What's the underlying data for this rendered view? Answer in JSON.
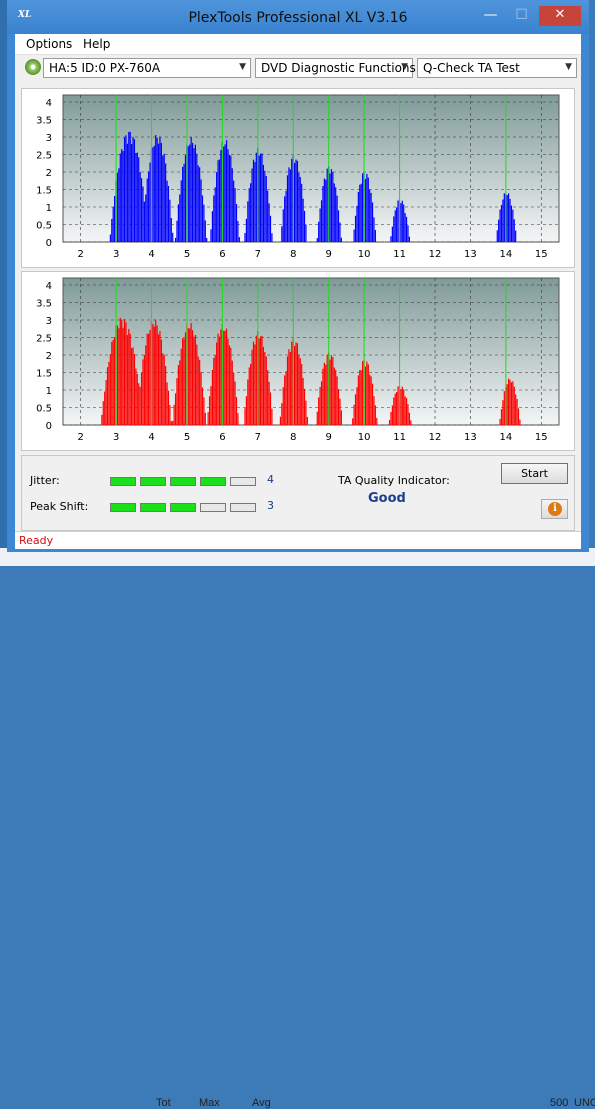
{
  "window": {
    "title": "PlexTools Professional XL V3.16",
    "logo_text": "XL",
    "minimize_glyph": "—",
    "maximize_glyph": "☐",
    "close_glyph": "✕"
  },
  "menu": {
    "items": [
      "Options",
      "Help"
    ]
  },
  "toolbar": {
    "drive": "HA:5 ID:0  PX-760A",
    "function": "DVD Diagnostic Functions",
    "test": "Q-Check TA Test",
    "dropdown_glyph": "▼"
  },
  "chart_data": [
    {
      "type": "bar",
      "name": "upper",
      "color": "#0000ff",
      "x_ticks": [
        "2",
        "3",
        "4",
        "5",
        "6",
        "7",
        "8",
        "9",
        "10",
        "11",
        "12",
        "13",
        "14",
        "15"
      ],
      "y_ticks": [
        "0",
        "0.5",
        "1",
        "1.5",
        "2",
        "2.5",
        "3",
        "3.5",
        "4"
      ],
      "xlim": [
        1.5,
        15.5
      ],
      "ylim": [
        0,
        4.2
      ],
      "marker_x": [
        3,
        4,
        5,
        6,
        7,
        8,
        9,
        10,
        11,
        14
      ],
      "peaks": [
        {
          "center": 3.35,
          "height": 3.2,
          "halfwidth": 0.55
        },
        {
          "center": 4.15,
          "height": 3.1,
          "halfwidth": 0.45
        },
        {
          "center": 5.1,
          "height": 3.0,
          "halfwidth": 0.45
        },
        {
          "center": 6.05,
          "height": 2.95,
          "halfwidth": 0.42
        },
        {
          "center": 7.0,
          "height": 2.7,
          "halfwidth": 0.4
        },
        {
          "center": 8.0,
          "height": 2.5,
          "halfwidth": 0.38
        },
        {
          "center": 9.0,
          "height": 2.2,
          "halfwidth": 0.35
        },
        {
          "center": 10.0,
          "height": 2.05,
          "halfwidth": 0.33
        },
        {
          "center": 11.0,
          "height": 1.25,
          "halfwidth": 0.28
        },
        {
          "center": 14.0,
          "height": 1.45,
          "halfwidth": 0.3
        }
      ]
    },
    {
      "type": "bar",
      "name": "lower",
      "color": "#ff0000",
      "x_ticks": [
        "2",
        "3",
        "4",
        "5",
        "6",
        "7",
        "8",
        "9",
        "10",
        "11",
        "12",
        "13",
        "14",
        "15"
      ],
      "y_ticks": [
        "0",
        "0.5",
        "1",
        "1.5",
        "2",
        "2.5",
        "3",
        "3.5",
        "4"
      ],
      "xlim": [
        1.5,
        15.5
      ],
      "ylim": [
        0,
        4.2
      ],
      "marker_x": [
        3,
        4,
        5,
        6,
        7,
        8,
        9,
        10,
        11,
        14
      ],
      "peaks": [
        {
          "center": 3.15,
          "height": 3.1,
          "halfwidth": 0.6
        },
        {
          "center": 4.05,
          "height": 3.05,
          "halfwidth": 0.5
        },
        {
          "center": 5.05,
          "height": 2.95,
          "halfwidth": 0.48
        },
        {
          "center": 6.0,
          "height": 2.9,
          "halfwidth": 0.45
        },
        {
          "center": 7.0,
          "height": 2.7,
          "halfwidth": 0.42
        },
        {
          "center": 8.0,
          "height": 2.5,
          "halfwidth": 0.4
        },
        {
          "center": 9.0,
          "height": 2.1,
          "halfwidth": 0.38
        },
        {
          "center": 10.0,
          "height": 1.9,
          "halfwidth": 0.36
        },
        {
          "center": 11.0,
          "height": 1.15,
          "halfwidth": 0.32
        },
        {
          "center": 14.1,
          "height": 1.35,
          "halfwidth": 0.3
        }
      ]
    }
  ],
  "results": {
    "jitter_label": "Jitter:",
    "jitter_value": "4",
    "jitter_level": 4,
    "peak_label": "Peak Shift:",
    "peak_value": "3",
    "peak_level": 3,
    "max_level": 5,
    "ta_label": "TA Quality Indicator:",
    "ta_value": "Good",
    "start_label": "Start",
    "info_glyph": "i"
  },
  "status": "Ready",
  "taskbar": {
    "items": [
      "Tot",
      "Max",
      "Avg",
      "500",
      "UNG"
    ]
  }
}
